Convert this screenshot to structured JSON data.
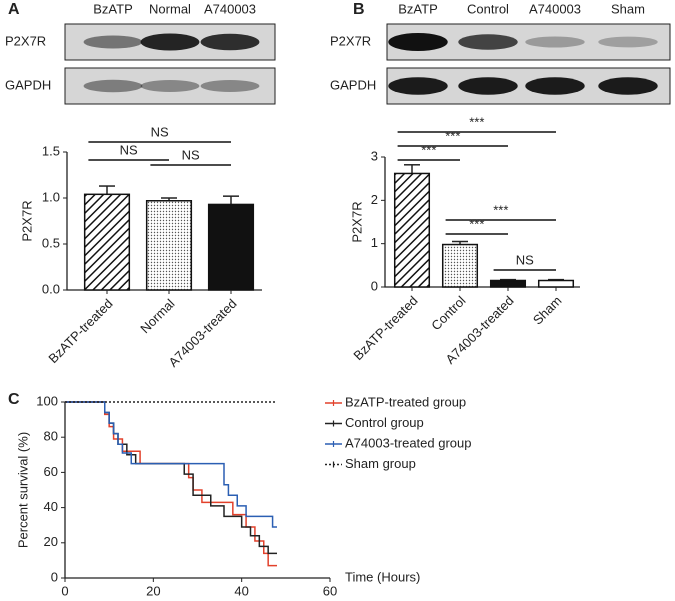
{
  "chart_data": [
    {
      "type": "bar",
      "panel": "A",
      "blot": {
        "lanes": [
          "BzATP",
          "Normal",
          "A740003"
        ],
        "rows": [
          "P2X7R",
          "GAPDH"
        ]
      },
      "ylabel": "P2X7R",
      "categories": [
        "BzATP-treated",
        "Normal",
        "A74003-treated"
      ],
      "values": [
        1.04,
        0.97,
        0.93
      ],
      "errors": [
        0.09,
        0.03,
        0.09
      ],
      "fills": [
        "hatch",
        "dots",
        "solid"
      ],
      "ylim": [
        0,
        1.5
      ],
      "yticks": [
        {
          "value": 0,
          "label": "0.0"
        },
        {
          "value": 0.5,
          "label": "0.5"
        },
        {
          "value": 1,
          "label": "1.0"
        },
        {
          "value": 1.5,
          "label": "1.5"
        }
      ],
      "annotations": [
        {
          "text": "NS",
          "between": [
            0,
            2
          ]
        },
        {
          "text": "NS",
          "between": [
            0,
            1
          ]
        },
        {
          "text": "NS",
          "between": [
            1,
            2
          ]
        }
      ]
    },
    {
      "type": "bar",
      "panel": "B",
      "blot": {
        "lanes": [
          "BzATP",
          "Control",
          "A740003",
          "Sham"
        ],
        "rows": [
          "P2X7R",
          "GAPDH"
        ]
      },
      "ylabel": "P2X7R",
      "categories": [
        "BzATP-treated",
        "Control",
        "A74003-treated",
        "Sham"
      ],
      "values": [
        2.62,
        0.98,
        0.15,
        0.15
      ],
      "errors": [
        0.2,
        0.07,
        0.02,
        0.02
      ],
      "fills": [
        "hatch",
        "dots",
        "solid",
        "white"
      ],
      "ylim": [
        0,
        3
      ],
      "yticks": [
        0,
        1,
        2,
        3
      ],
      "annotations": [
        {
          "text": "***",
          "between": [
            0,
            3
          ]
        },
        {
          "text": "***",
          "between": [
            0,
            2
          ]
        },
        {
          "text": "***",
          "between": [
            0,
            1
          ]
        },
        {
          "text": "***",
          "between": [
            1,
            3
          ]
        },
        {
          "text": "***",
          "between": [
            1,
            2
          ]
        },
        {
          "text": "NS",
          "between": [
            2,
            3
          ]
        }
      ]
    },
    {
      "type": "line",
      "panel": "C",
      "ylabel": "Percent survival (%)",
      "xlabel": "Time (Hours)",
      "xlim": [
        0,
        60
      ],
      "xticks": [
        0,
        20,
        40,
        60
      ],
      "ylim": [
        0,
        100
      ],
      "yticks": [
        0,
        20,
        40,
        60,
        80,
        100
      ],
      "series": [
        {
          "name": "BzATP-treated group",
          "color": "#e2412b",
          "style": "solid",
          "x": [
            0,
            9,
            10,
            11,
            13,
            17,
            28,
            29,
            31,
            38,
            41,
            43,
            45,
            46,
            48
          ],
          "values": [
            100,
            93,
            86,
            79,
            72,
            65,
            57,
            50,
            43,
            36,
            29,
            21,
            14,
            7,
            7
          ]
        },
        {
          "name": "Control group",
          "color": "#222222",
          "style": "solid",
          "x": [
            0,
            9,
            10,
            11,
            12,
            14,
            16,
            27,
            29,
            33,
            36,
            40,
            42,
            44,
            46,
            48
          ],
          "values": [
            100,
            94,
            88,
            82,
            76,
            70,
            65,
            59,
            47,
            41,
            35,
            29,
            24,
            18,
            14,
            14
          ]
        },
        {
          "name": "A74003-treated group",
          "color": "#2b5fb3",
          "style": "solid",
          "x": [
            0,
            9,
            10,
            11,
            12,
            13,
            15,
            36,
            37,
            39,
            41,
            44,
            47,
            48
          ],
          "values": [
            100,
            94,
            88,
            82,
            76,
            71,
            65,
            53,
            47,
            41,
            35,
            35,
            29,
            29
          ]
        },
        {
          "name": "Sham group",
          "color": "#222222",
          "style": "dotted",
          "x": [
            0,
            48
          ],
          "values": [
            100,
            100
          ]
        }
      ]
    }
  ]
}
